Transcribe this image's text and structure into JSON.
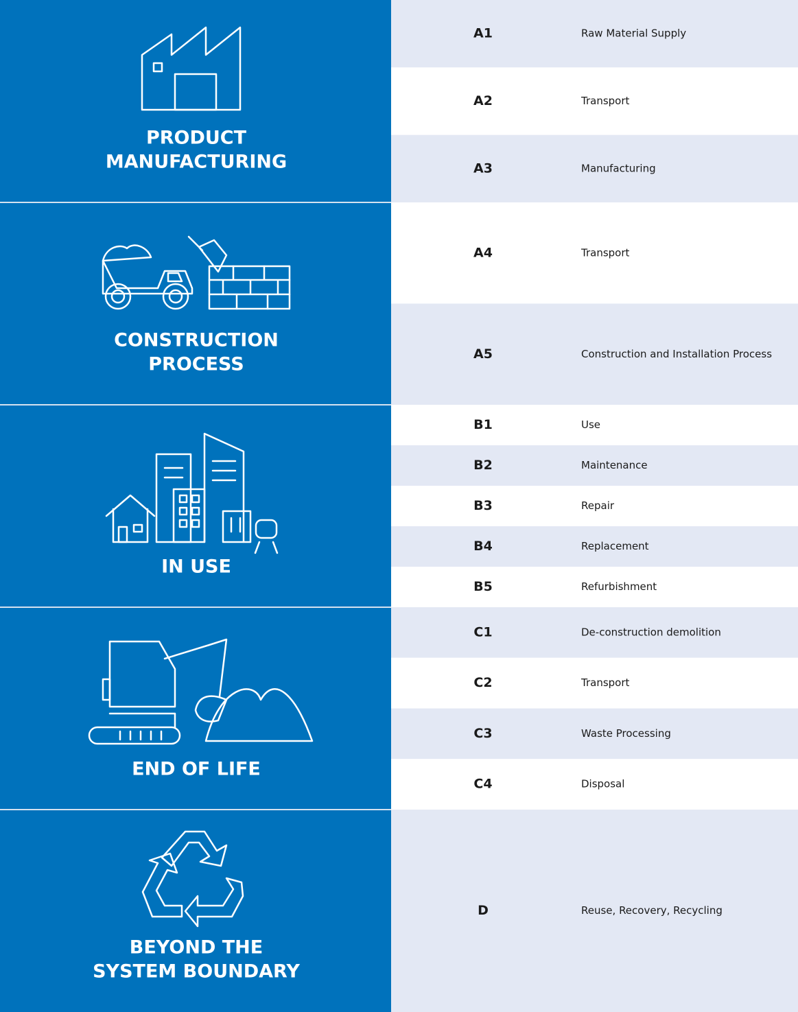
{
  "stages": [
    {
      "title": [
        "PRODUCT",
        "MANUFACTURING"
      ],
      "modules": [
        {
          "code": "A1",
          "label": "Raw Material Supply"
        },
        {
          "code": "A2",
          "label": "Transport"
        },
        {
          "code": "A3",
          "label": "Manufacturing"
        }
      ]
    },
    {
      "title": [
        "CONSTRUCTION",
        "PROCESS"
      ],
      "modules": [
        {
          "code": "A4",
          "label": "Transport"
        },
        {
          "code": "A5",
          "label": "Construction and Installation Process"
        }
      ]
    },
    {
      "title": [
        "IN USE"
      ],
      "modules": [
        {
          "code": "B1",
          "label": "Use"
        },
        {
          "code": "B2",
          "label": "Maintenance"
        },
        {
          "code": "B3",
          "label": "Repair"
        },
        {
          "code": "B4",
          "label": "Replacement"
        },
        {
          "code": "B5",
          "label": "Refurbishment"
        }
      ]
    },
    {
      "title": [
        "END OF LIFE"
      ],
      "modules": [
        {
          "code": "C1",
          "label": "De-construction demolition"
        },
        {
          "code": "C2",
          "label": "Transport"
        },
        {
          "code": "C3",
          "label": "Waste Processing"
        },
        {
          "code": "C4",
          "label": "Disposal"
        }
      ]
    },
    {
      "title": [
        "BEYOND THE",
        "SYSTEM BOUNDARY"
      ],
      "modules": [
        {
          "code": "D",
          "label": "Reuse, Recovery, Recycling"
        }
      ]
    }
  ]
}
